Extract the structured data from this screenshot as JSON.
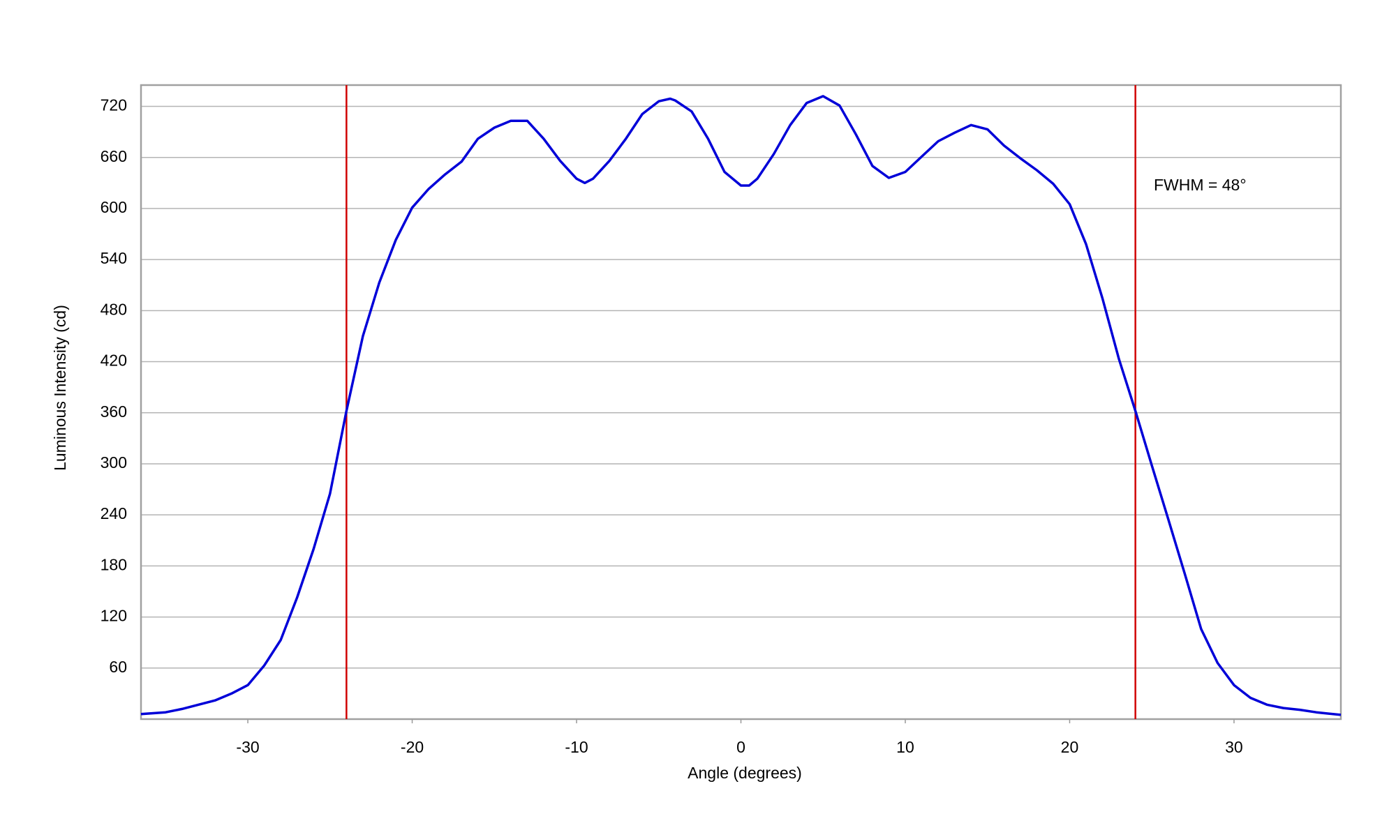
{
  "chart_data": {
    "type": "line",
    "xlabel": "Angle (degrees)",
    "ylabel": "Luminous Intensity (cd)",
    "annotation": "FWHM = 48°",
    "x": [
      -36.5,
      -35,
      -34,
      -33,
      -32,
      -31,
      -30,
      -29,
      -28,
      -27,
      -26,
      -25,
      -24,
      -23,
      -22,
      -21,
      -20,
      -19,
      -18,
      -17,
      -16,
      -15,
      -14,
      -13,
      -12,
      -11,
      -10,
      -9.5,
      -9,
      -8,
      -7,
      -6,
      -5,
      -4.3,
      -4,
      -3,
      -2,
      -1,
      0,
      0.5,
      1,
      2,
      3,
      4,
      5,
      6,
      7,
      8,
      9,
      10,
      11,
      12,
      13,
      14,
      15,
      16,
      17,
      18,
      19,
      20,
      21,
      22,
      23,
      24,
      25,
      26,
      27,
      28,
      29,
      30,
      31,
      32,
      33,
      34,
      35,
      36.5
    ],
    "series": [
      {
        "color": "#0000d8",
        "values": [
          6,
          8,
          12,
          17,
          22,
          30,
          40,
          63,
          93,
          143,
          200,
          265,
          362,
          450,
          513,
          563,
          601,
          623,
          640,
          655,
          682,
          695,
          703,
          703,
          682,
          656,
          635,
          630,
          635,
          656,
          682,
          711,
          726,
          729,
          727,
          714,
          682,
          643,
          627,
          627,
          635,
          664,
          698,
          724,
          732,
          721,
          687,
          650,
          636,
          643,
          661,
          679,
          689,
          698,
          693,
          674,
          659,
          645,
          629,
          605,
          558,
          494,
          423,
          362,
          298,
          235,
          171,
          106,
          66,
          40,
          25,
          17,
          13,
          11,
          8,
          5
        ]
      }
    ],
    "vlines": [
      -24,
      24
    ],
    "vline_color": "#d00000",
    "xlim": [
      -36.5,
      36.5
    ],
    "xticks": [
      -30,
      -20,
      -10,
      0,
      10,
      20,
      30
    ],
    "ylim": [
      0,
      745
    ],
    "yticks": [
      60,
      120,
      180,
      240,
      300,
      360,
      420,
      480,
      540,
      600,
      660,
      720
    ],
    "grid": true
  }
}
